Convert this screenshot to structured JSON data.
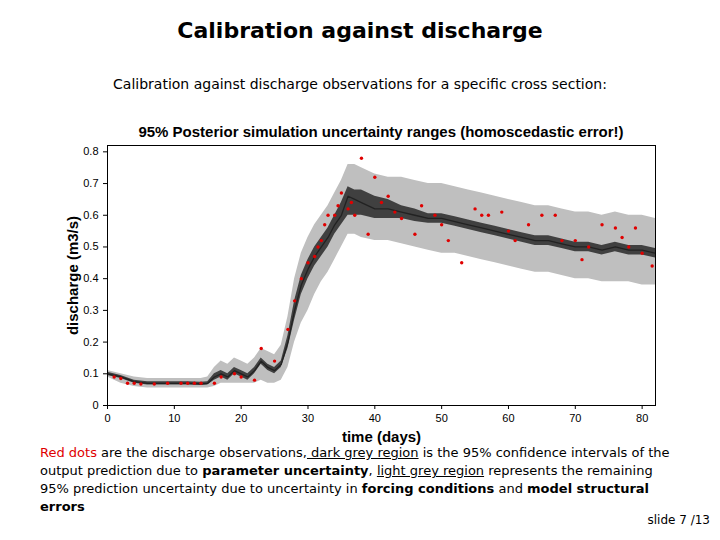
{
  "slide_title": "Calibration against discharge",
  "intro": "Calibration against discharge observations for a specific cross section:",
  "caption": [
    {
      "text": "Red dots",
      "style": "red"
    },
    {
      "text": " are the discharge observations,"
    },
    {
      "text": " dark grey region",
      "style": "underline"
    },
    {
      "text": " is the 95% confidence intervals of the output prediction due to "
    },
    {
      "text": "parameter uncertainty",
      "style": "bold"
    },
    {
      "text": ", "
    },
    {
      "text": "light grey region",
      "style": "underline"
    },
    {
      "text": " represents the remaining 95% prediction uncertainty due to uncertainty in "
    },
    {
      "text": "forcing conditions",
      "style": "bold"
    },
    {
      "text": " and "
    },
    {
      "text": "model structural errors",
      "style": "bold"
    }
  ],
  "footer": "slide 7 /13",
  "chart_data": {
    "type": "line",
    "title": "95% Posterior simulation uncertainty ranges (homoscedastic error!)",
    "x_label": "time (days)",
    "y_label": "discharge (m3/s)",
    "xlim": [
      0,
      82
    ],
    "ylim": [
      0,
      0.82
    ],
    "xticks": [
      0,
      10,
      20,
      30,
      40,
      50,
      60,
      70,
      80
    ],
    "yticks": [
      0,
      0.1,
      0.2,
      0.3,
      0.4,
      0.5,
      0.6,
      0.7,
      0.8
    ],
    "grid": false,
    "x": [
      0,
      2,
      4,
      6,
      8,
      10,
      12,
      14,
      15,
      16,
      17,
      18,
      19,
      20,
      21,
      22,
      23,
      24,
      25,
      26,
      27,
      28,
      29,
      30,
      31,
      32,
      33,
      34,
      35,
      36,
      37,
      38,
      40,
      42,
      44,
      46,
      48,
      50,
      52,
      54,
      56,
      58,
      60,
      62,
      64,
      66,
      68,
      70,
      72,
      74,
      76,
      78,
      80,
      82
    ],
    "median": {
      "color": "#222222",
      "values": [
        0.1,
        0.09,
        0.075,
        0.07,
        0.07,
        0.07,
        0.07,
        0.068,
        0.07,
        0.09,
        0.1,
        0.09,
        0.11,
        0.1,
        0.09,
        0.11,
        0.14,
        0.12,
        0.11,
        0.13,
        0.2,
        0.3,
        0.38,
        0.43,
        0.47,
        0.5,
        0.53,
        0.57,
        0.6,
        0.66,
        0.65,
        0.64,
        0.62,
        0.62,
        0.61,
        0.6,
        0.59,
        0.59,
        0.58,
        0.57,
        0.56,
        0.55,
        0.54,
        0.53,
        0.52,
        0.52,
        0.51,
        0.5,
        0.5,
        0.49,
        0.5,
        0.49,
        0.49,
        0.48
      ]
    },
    "parameter_band": {
      "color": "#404040",
      "lower": [
        0.095,
        0.085,
        0.07,
        0.065,
        0.065,
        0.065,
        0.065,
        0.063,
        0.065,
        0.08,
        0.09,
        0.08,
        0.1,
        0.09,
        0.08,
        0.1,
        0.13,
        0.11,
        0.1,
        0.12,
        0.18,
        0.27,
        0.35,
        0.4,
        0.44,
        0.47,
        0.5,
        0.54,
        0.57,
        0.6,
        0.6,
        0.6,
        0.59,
        0.59,
        0.59,
        0.58,
        0.575,
        0.575,
        0.565,
        0.555,
        0.545,
        0.535,
        0.525,
        0.515,
        0.505,
        0.505,
        0.495,
        0.485,
        0.485,
        0.475,
        0.485,
        0.475,
        0.475,
        0.465
      ],
      "upper": [
        0.105,
        0.095,
        0.08,
        0.075,
        0.075,
        0.075,
        0.075,
        0.073,
        0.075,
        0.1,
        0.11,
        0.1,
        0.12,
        0.11,
        0.1,
        0.12,
        0.15,
        0.13,
        0.12,
        0.14,
        0.22,
        0.33,
        0.41,
        0.46,
        0.5,
        0.53,
        0.56,
        0.6,
        0.64,
        0.69,
        0.68,
        0.68,
        0.66,
        0.65,
        0.63,
        0.62,
        0.605,
        0.605,
        0.595,
        0.585,
        0.575,
        0.565,
        0.555,
        0.545,
        0.535,
        0.535,
        0.525,
        0.515,
        0.515,
        0.505,
        0.515,
        0.505,
        0.505,
        0.495
      ]
    },
    "total_band": {
      "color": "#bfbfbf",
      "lower": [
        0.09,
        0.07,
        0.06,
        0.055,
        0.055,
        0.055,
        0.055,
        0.055,
        0.055,
        0.06,
        0.07,
        0.07,
        0.07,
        0.07,
        0.07,
        0.07,
        0.08,
        0.07,
        0.07,
        0.08,
        0.12,
        0.2,
        0.26,
        0.3,
        0.35,
        0.39,
        0.42,
        0.46,
        0.5,
        0.54,
        0.54,
        0.53,
        0.52,
        0.52,
        0.51,
        0.5,
        0.49,
        0.48,
        0.48,
        0.47,
        0.46,
        0.45,
        0.44,
        0.43,
        0.42,
        0.42,
        0.41,
        0.4,
        0.4,
        0.39,
        0.39,
        0.39,
        0.38,
        0.38
      ],
      "upper": [
        0.11,
        0.1,
        0.09,
        0.085,
        0.085,
        0.085,
        0.085,
        0.085,
        0.09,
        0.12,
        0.14,
        0.13,
        0.15,
        0.14,
        0.13,
        0.15,
        0.18,
        0.17,
        0.16,
        0.19,
        0.28,
        0.4,
        0.48,
        0.53,
        0.57,
        0.6,
        0.63,
        0.67,
        0.71,
        0.76,
        0.76,
        0.75,
        0.73,
        0.72,
        0.72,
        0.71,
        0.7,
        0.7,
        0.69,
        0.68,
        0.67,
        0.66,
        0.65,
        0.64,
        0.63,
        0.63,
        0.62,
        0.61,
        0.61,
        0.6,
        0.61,
        0.6,
        0.6,
        0.59
      ]
    },
    "observations": {
      "color": "#e00000",
      "marker": "dot",
      "x": [
        1,
        2,
        3,
        4,
        5,
        7,
        9,
        11,
        12,
        13,
        14,
        16,
        17,
        19,
        20,
        22,
        23,
        25,
        27,
        28,
        29,
        30,
        31,
        31.5,
        32,
        32.5,
        33,
        34,
        34.5,
        35,
        36,
        36.5,
        37,
        38,
        39,
        40,
        41,
        42,
        43,
        44,
        46,
        47,
        49,
        50,
        51,
        53,
        55,
        56,
        57,
        59,
        60,
        61,
        63,
        65,
        67,
        68,
        70,
        71,
        72,
        74,
        76,
        77,
        78,
        79,
        80,
        81.5
      ],
      "values": [
        0.09,
        0.085,
        0.07,
        0.07,
        0.068,
        0.068,
        0.07,
        0.07,
        0.07,
        0.07,
        0.07,
        0.07,
        0.09,
        0.1,
        0.09,
        0.08,
        0.18,
        0.14,
        0.24,
        0.33,
        0.4,
        0.45,
        0.47,
        0.5,
        0.52,
        0.57,
        0.6,
        0.6,
        0.63,
        0.67,
        0.62,
        0.64,
        0.6,
        0.78,
        0.54,
        0.72,
        0.64,
        0.66,
        0.61,
        0.59,
        0.54,
        0.63,
        0.6,
        0.57,
        0.52,
        0.45,
        0.62,
        0.6,
        0.6,
        0.61,
        0.55,
        0.52,
        0.57,
        0.6,
        0.6,
        0.52,
        0.52,
        0.46,
        0.5,
        0.57,
        0.56,
        0.53,
        0.5,
        0.56,
        0.48,
        0.44
      ]
    }
  }
}
